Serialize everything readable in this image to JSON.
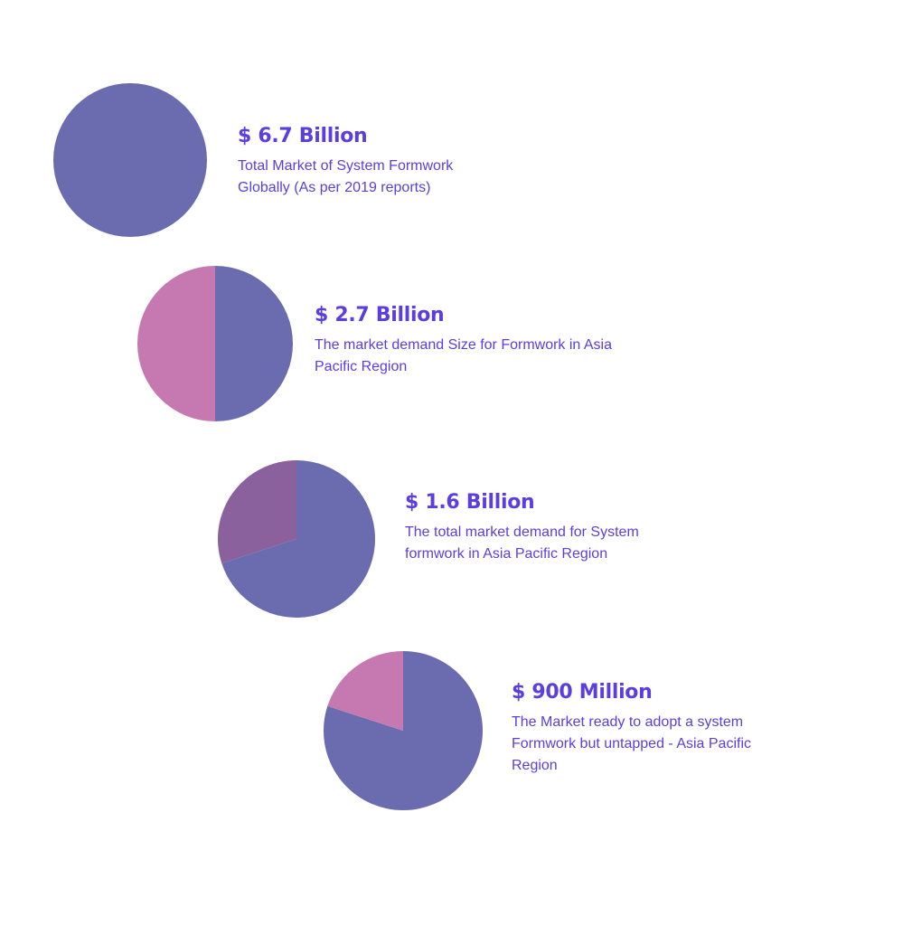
{
  "colors": {
    "primary": "#6b6caf",
    "secondary": "#c679b1",
    "tertiary": "#8a619c",
    "amount_text": "#5b3ee0",
    "desc_text": "#5b3ee0"
  },
  "chart_data": [
    {
      "type": "pie",
      "title": "$ 6.7 Billion",
      "subtitle": "Total Market of System Formwork Globally (As per 2019 reports)",
      "values": [
        100
      ],
      "colors": [
        "#6b6caf"
      ]
    },
    {
      "type": "pie",
      "title": "$ 2.7 Billion",
      "subtitle": "The market demand Size for Formwork in Asia Pacific Region",
      "values": [
        50,
        50
      ],
      "colors": [
        "#6b6caf",
        "#c679b1"
      ]
    },
    {
      "type": "pie",
      "title": "$ 1.6 Billion",
      "subtitle": "The total market demand for System formwork in Asia Pacific Region",
      "values": [
        70,
        30
      ],
      "colors": [
        "#6b6caf",
        "#8a619c"
      ]
    },
    {
      "type": "pie",
      "title": "$ 900 Million",
      "subtitle": "The Market ready to adopt a system Formwork but untapped - Asia Pacific Region",
      "values": [
        80,
        20
      ],
      "colors": [
        "#6b6caf",
        "#c679b1"
      ]
    }
  ]
}
